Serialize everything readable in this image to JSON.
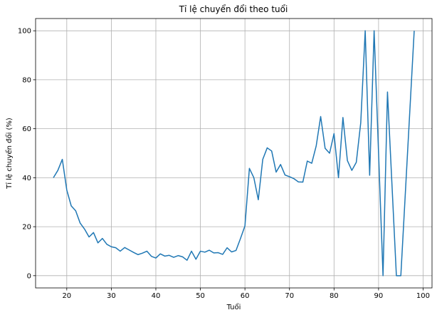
{
  "chart_data": {
    "type": "line",
    "title": "Tỉ lệ chuyển đổi theo tuổi",
    "xlabel": "Tuổi",
    "ylabel": "Tỉ lệ chuyển đổi (%)",
    "xlim": [
      13,
      102
    ],
    "ylim": [
      -5,
      105
    ],
    "xticks": [
      20,
      30,
      40,
      50,
      60,
      70,
      80,
      90,
      100
    ],
    "yticks": [
      0,
      20,
      40,
      60,
      80,
      100
    ],
    "grid": true,
    "series_color": "#1f77b4",
    "series": [
      {
        "x": [
          17,
          18,
          19,
          20,
          21,
          22,
          23,
          24,
          25,
          26,
          27,
          28,
          29,
          30,
          31,
          32,
          33,
          34,
          35,
          36,
          37,
          38,
          39,
          40,
          41,
          42,
          43,
          44,
          45,
          46,
          47,
          48,
          49,
          50,
          51,
          52,
          53,
          54,
          55,
          56,
          57,
          58,
          59,
          60,
          61,
          62,
          63,
          64,
          65,
          66,
          67,
          68,
          69,
          70,
          71,
          72,
          73,
          74,
          75,
          76,
          77,
          78,
          79,
          80,
          81,
          82,
          83,
          84,
          85,
          86,
          87,
          88,
          89,
          90,
          91,
          92,
          93,
          94,
          95,
          98
        ],
        "y": [
          40,
          43,
          47.5,
          35,
          28.5,
          26.5,
          21.5,
          19,
          15.8,
          17.6,
          13.4,
          15.2,
          12.8,
          11.8,
          11.4,
          10,
          11.5,
          10.5,
          9.5,
          8.6,
          9.2,
          10,
          7.9,
          7.2,
          8.9,
          8,
          8.3,
          7.5,
          8.2,
          7.7,
          6.3,
          10,
          6.7,
          10,
          9.6,
          10.4,
          9.3,
          9.4,
          8.7,
          11.4,
          9.7,
          10.3,
          15.2,
          20.3,
          43.8,
          40,
          31,
          47.5,
          52.2,
          50.9,
          42.3,
          45.4,
          41.1,
          40.4,
          39.6,
          38.3,
          38.2,
          46.8,
          45.9,
          53,
          65,
          52,
          50,
          58,
          40,
          64.6,
          47,
          43,
          46.3,
          62.5,
          100,
          41,
          100,
          50,
          0,
          75,
          37.5,
          0,
          0,
          100
        ]
      }
    ]
  }
}
